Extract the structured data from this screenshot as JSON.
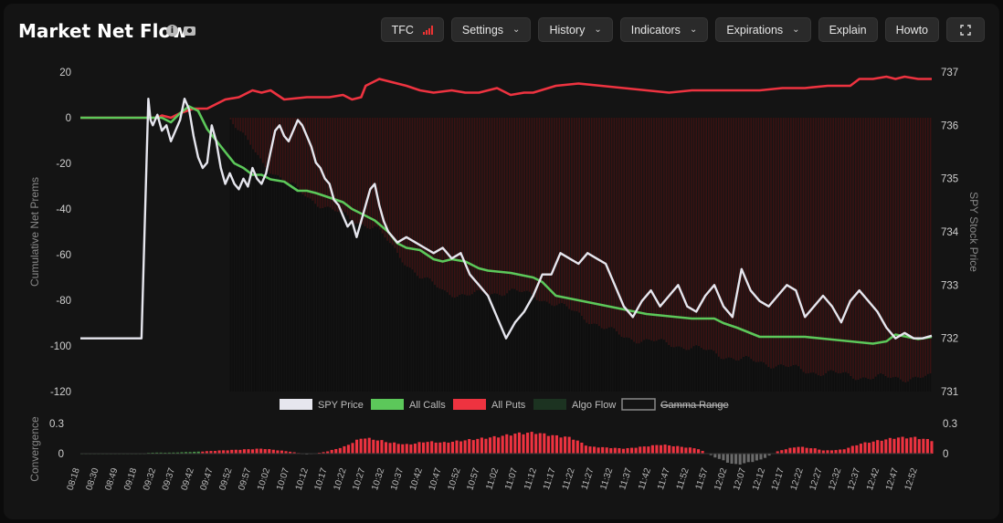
{
  "header": {
    "title": "Market Net Flow",
    "info_icon": "info-icon",
    "camera_icon": "camera-icon",
    "buttons": {
      "tfc": "TFC",
      "settings": "Settings",
      "history": "History",
      "indicators": "Indicators",
      "expirations": "Expirations",
      "explain": "Explain",
      "howto": "Howto"
    },
    "expand_icon": "expand-icon"
  },
  "chart_data": [
    {
      "type": "line",
      "title": "",
      "ylabel": "Cumulative Net Prems",
      "y2label": "SPY Stock Price",
      "ylim": [
        -120,
        20
      ],
      "yticks": [
        20,
        0,
        -20,
        -40,
        -60,
        -80,
        -100,
        -120
      ],
      "y2lim": [
        731,
        737
      ],
      "y2ticks": [
        737,
        736,
        735,
        734,
        733,
        732,
        731
      ],
      "xlim": [
        0,
        188
      ],
      "grid": false,
      "legend_position": "bottom-center",
      "legend": [
        {
          "name": "SPY Price",
          "color": "#e6e6ee"
        },
        {
          "name": "All Calls",
          "color": "#5cc85a"
        },
        {
          "name": "All Puts",
          "color": "#ee3340"
        },
        {
          "name": "Algo Flow",
          "color": "#1c3321"
        },
        {
          "name": "Gamma Range",
          "color": "#777777",
          "hidden": true
        }
      ],
      "series": [
        {
          "name": "All Puts",
          "axis": "left",
          "x": [
            0,
            15,
            16,
            17,
            18,
            20,
            22,
            25,
            28,
            32,
            35,
            36,
            38,
            40,
            42,
            45,
            50,
            55,
            58,
            60,
            62,
            63,
            64,
            66,
            68,
            72,
            75,
            78,
            82,
            85,
            88,
            90,
            92,
            95,
            98,
            100,
            105,
            110,
            115,
            120,
            125,
            130,
            135,
            140,
            145,
            150,
            155,
            160,
            165,
            170,
            172,
            175,
            178,
            180,
            182,
            185,
            188
          ],
          "y": [
            0,
            0,
            0,
            0,
            1,
            0,
            2,
            4,
            4,
            8,
            9,
            10,
            12,
            11,
            12,
            8,
            9,
            9,
            10,
            8,
            9,
            14,
            15,
            17,
            16,
            14,
            12,
            11,
            12,
            11,
            11,
            12,
            13,
            10,
            11,
            11,
            14,
            15,
            14,
            13,
            12,
            11,
            12,
            12,
            12,
            12,
            13,
            13,
            14,
            14,
            17,
            17,
            18,
            17,
            18,
            17,
            17
          ]
        },
        {
          "name": "All Calls",
          "axis": "left",
          "x": [
            0,
            15,
            16,
            18,
            20,
            22,
            24,
            26,
            28,
            30,
            32,
            34,
            36,
            38,
            40,
            42,
            45,
            48,
            50,
            52,
            55,
            58,
            60,
            62,
            65,
            68,
            70,
            72,
            75,
            78,
            80,
            82,
            85,
            88,
            90,
            95,
            100,
            102,
            105,
            110,
            115,
            120,
            125,
            130,
            135,
            140,
            142,
            145,
            150,
            155,
            160,
            165,
            170,
            175,
            178,
            180,
            185,
            188
          ],
          "y": [
            0,
            0,
            0,
            0,
            -2,
            2,
            5,
            3,
            -5,
            -10,
            -15,
            -20,
            -22,
            -25,
            -25,
            -27,
            -28,
            -32,
            -32,
            -33,
            -35,
            -37,
            -40,
            -42,
            -45,
            -50,
            -55,
            -57,
            -58,
            -62,
            -63,
            -62,
            -63,
            -66,
            -67,
            -68,
            -70,
            -72,
            -78,
            -80,
            -82,
            -84,
            -86,
            -87,
            -88,
            -88,
            -90,
            -92,
            -96,
            -96,
            -96,
            -97,
            -98,
            -99,
            -98,
            -95,
            -97,
            -96
          ]
        },
        {
          "name": "SPY Price",
          "axis": "right",
          "x": [
            0,
            13.5,
            14,
            15,
            15.5,
            16,
            17,
            18,
            19,
            20,
            21,
            22,
            23,
            24,
            25,
            26,
            27,
            28,
            29,
            30,
            31,
            32,
            33,
            34,
            35,
            36,
            37,
            38,
            39,
            40,
            41,
            42,
            43,
            44,
            45,
            46,
            47,
            48,
            49,
            50,
            51,
            52,
            53,
            54,
            55,
            56,
            57,
            58,
            59,
            60,
            61,
            62,
            63,
            64,
            65,
            66,
            67,
            68,
            69,
            70,
            72,
            74,
            76,
            78,
            80,
            82,
            84,
            86,
            88,
            90,
            92,
            94,
            96,
            98,
            100,
            102,
            104,
            106,
            108,
            110,
            112,
            114,
            116,
            118,
            120,
            122,
            124,
            126,
            128,
            130,
            132,
            134,
            136,
            138,
            140,
            142,
            144,
            146,
            148,
            150,
            152,
            154,
            156,
            158,
            160,
            162,
            164,
            166,
            168,
            170,
            172,
            174,
            176,
            178,
            180,
            182,
            184,
            186,
            188
          ],
          "y": [
            732,
            732,
            733.5,
            736.5,
            736.1,
            736.0,
            736.2,
            735.9,
            736.0,
            735.7,
            735.9,
            736.1,
            736.5,
            736.3,
            735.8,
            735.4,
            735.2,
            735.3,
            736.0,
            735.7,
            735.2,
            734.9,
            735.1,
            734.9,
            734.8,
            735.0,
            734.85,
            735.2,
            735.0,
            734.9,
            735.1,
            735.5,
            735.9,
            736.0,
            735.8,
            735.7,
            735.9,
            736.1,
            736.0,
            735.8,
            735.6,
            735.3,
            735.2,
            735.0,
            734.9,
            734.6,
            734.5,
            734.3,
            734.1,
            734.2,
            733.9,
            734.2,
            734.5,
            734.8,
            734.9,
            734.5,
            734.2,
            734.0,
            733.9,
            733.8,
            733.9,
            733.8,
            733.7,
            733.6,
            733.7,
            733.5,
            733.6,
            733.2,
            733.0,
            732.8,
            732.4,
            732.0,
            732.3,
            732.5,
            732.8,
            733.2,
            733.2,
            733.6,
            733.5,
            733.4,
            733.6,
            733.5,
            733.4,
            733.0,
            732.6,
            732.4,
            732.7,
            732.9,
            732.6,
            732.8,
            733.0,
            732.6,
            732.5,
            732.8,
            733.0,
            732.6,
            732.4,
            733.3,
            732.9,
            732.7,
            732.6,
            732.8,
            733.0,
            732.9,
            732.4,
            732.6,
            732.8,
            732.6,
            732.3,
            732.7,
            732.9,
            732.7,
            732.5,
            732.2,
            732.0,
            732.1,
            732.0,
            732.0,
            732.05
          ]
        },
        {
          "name": "Algo Flow (puts fill)",
          "axis": "left",
          "x": [
            0,
            33,
            40,
            50,
            60,
            65,
            70,
            75,
            80,
            85,
            90,
            95,
            100,
            105,
            110,
            115,
            120,
            125,
            130,
            135,
            140,
            145,
            150,
            155,
            160,
            165,
            170,
            175,
            180,
            185,
            188
          ],
          "y": [
            0,
            0,
            -20,
            -35,
            -45,
            -48,
            -60,
            -70,
            -76,
            -78,
            -77,
            -76,
            -78,
            -82,
            -86,
            -92,
            -96,
            -98,
            -99,
            -101,
            -103,
            -106,
            -107,
            -109,
            -111,
            -112,
            -113,
            -114,
            -114,
            -114,
            -114
          ]
        }
      ]
    },
    {
      "type": "bar",
      "title": "",
      "ylabel": "Convergence",
      "ylim": [
        -0.1,
        0.3
      ],
      "yticks": [
        0.3,
        0
      ],
      "xticks": [
        "08:18",
        "08:30",
        "08:49",
        "09:18",
        "09:32",
        "09:37",
        "09:42",
        "09:47",
        "09:52",
        "09:57",
        "10:02",
        "10:07",
        "10:12",
        "10:17",
        "10:22",
        "10:27",
        "10:32",
        "10:37",
        "10:42",
        "10:47",
        "10:52",
        "10:57",
        "11:02",
        "11:07",
        "11:12",
        "11:17",
        "11:22",
        "11:27",
        "11:32",
        "11:37",
        "11:42",
        "11:47",
        "11:52",
        "11:57",
        "12:02",
        "12:07",
        "12:12",
        "12:17",
        "12:22",
        "12:27",
        "12:32",
        "12:37",
        "12:42",
        "12:47",
        "12:52"
      ],
      "profile_x": [
        0,
        14,
        15,
        20,
        26,
        30,
        40,
        46,
        50,
        54,
        58,
        62,
        66,
        68,
        72,
        76,
        80,
        84,
        88,
        92,
        96,
        100,
        104,
        108,
        112,
        116,
        120,
        124,
        128,
        132,
        136,
        140,
        144,
        146,
        150,
        154,
        158,
        162,
        164,
        168,
        172,
        176,
        180,
        184,
        188
      ],
      "profile_y": [
        0,
        0,
        0.01,
        0.01,
        0.02,
        0.03,
        0.05,
        0.02,
        -0.01,
        0.02,
        0.07,
        0.16,
        0.13,
        0.11,
        0.09,
        0.12,
        0.11,
        0.13,
        0.15,
        0.17,
        0.2,
        0.21,
        0.18,
        0.16,
        0.07,
        0.06,
        0.05,
        0.07,
        0.09,
        0.07,
        0.05,
        -0.04,
        -0.11,
        -0.1,
        -0.06,
        0.03,
        0.07,
        0.05,
        0.03,
        0.04,
        0.1,
        0.13,
        0.16,
        0.16,
        0.13
      ]
    }
  ]
}
